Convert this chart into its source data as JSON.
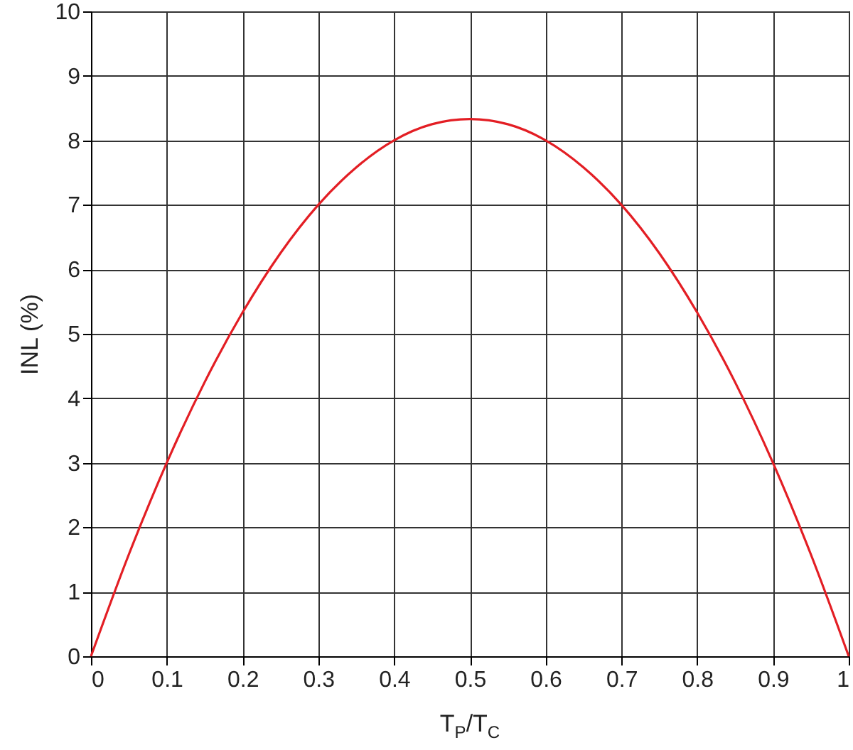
{
  "chart_data": {
    "type": "line",
    "xlabel": "T$_{P}$/T$_{C}$",
    "ylabel": "INL (%)",
    "x": [
      0,
      0.05,
      0.1,
      0.15,
      0.2,
      0.25,
      0.3,
      0.35,
      0.4,
      0.45,
      0.5,
      0.55,
      0.6,
      0.65,
      0.7,
      0.75,
      0.8,
      0.85,
      0.9,
      0.95,
      1
    ],
    "series": [
      {
        "color": "#e31e24",
        "values": [
          0,
          1.58,
          3,
          4.25,
          5.33,
          6.25,
          7,
          7.58,
          8,
          8.25,
          8.33,
          8.25,
          8,
          7.58,
          7,
          6.25,
          5.33,
          4.25,
          3,
          1.58,
          0
        ]
      }
    ],
    "xlim": [
      0,
      1
    ],
    "xticks": [
      0,
      0.1,
      0.2,
      0.3,
      0.4,
      0.5,
      0.6,
      0.7,
      0.8,
      0.9,
      1
    ],
    "ylim": [
      0,
      10
    ],
    "yticks": [
      0,
      1,
      2,
      3,
      4,
      5,
      6,
      7,
      8,
      9,
      10
    ],
    "grid": true,
    "marker": "none",
    "line_style": "solid"
  }
}
